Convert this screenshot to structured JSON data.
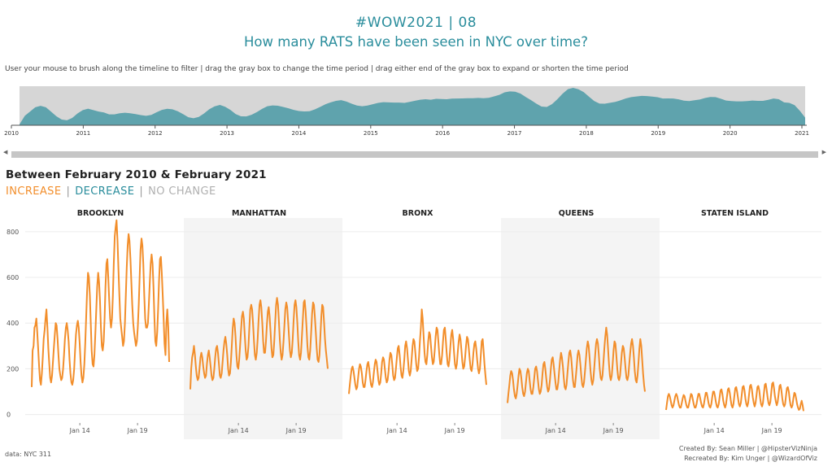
{
  "header": {
    "title": "#WOW2021  |  08",
    "subtitle": "How many RATS have been seen in NYC over time?"
  },
  "instructions": "User your mouse to brush along the timeline to filter  |  drag the gray box to change the time period  |  drag either end of the gray box to expand or shorten the time period",
  "timeline": {
    "years": [
      "2010",
      "2011",
      "2012",
      "2013",
      "2014",
      "2015",
      "2016",
      "2017",
      "2018",
      "2019",
      "2020",
      "2021"
    ],
    "series_color": "#5fa3ad",
    "background_color": "#d6d6d6"
  },
  "scrollbar": {
    "left_arrow": "◀",
    "right_arrow": "▶"
  },
  "period": "Between February 2010 & February 2021",
  "legend": {
    "increase": "INCREASE",
    "decrease": "DECREASE",
    "no_change": "NO CHANGE",
    "separator": "|",
    "colors": {
      "increase": "#f28e2b",
      "decrease": "#2a8d9c",
      "no_change": "#b0b0b0"
    }
  },
  "chart_data": {
    "type": "line",
    "yticks": [
      0,
      200,
      400,
      600,
      800
    ],
    "ylim": [
      0,
      880
    ],
    "xticks": [
      "Jan 14",
      "Jan 19"
    ],
    "line_color": "#f28e2b",
    "series": [
      {
        "name": "BROOKLYN",
        "values": [
          120,
          280,
          300,
          380,
          390,
          420,
          360,
          290,
          210,
          150,
          130,
          180,
          250,
          330,
          370,
          420,
          460,
          380,
          290,
          220,
          160,
          140,
          170,
          230,
          290,
          350,
          400,
          390,
          330,
          260,
          200,
          170,
          150,
          160,
          200,
          260,
          330,
          380,
          400,
          370,
          320,
          240,
          180,
          140,
          130,
          150,
          200,
          280,
          350,
          390,
          410,
          380,
          310,
          230,
          170,
          140,
          160,
          220,
          310,
          420,
          540,
          620,
          600,
          520,
          400,
          280,
          220,
          210,
          260,
          360,
          460,
          560,
          620,
          580,
          500,
          380,
          300,
          280,
          320,
          420,
          560,
          660,
          680,
          600,
          500,
          420,
          380,
          420,
          520,
          660,
          780,
          820,
          850,
          760,
          640,
          520,
          420,
          380,
          340,
          300,
          320,
          400,
          520,
          640,
          740,
          790,
          760,
          680,
          580,
          480,
          400,
          360,
          330,
          300,
          320,
          380,
          480,
          600,
          720,
          770,
          740,
          660,
          520,
          420,
          380,
          380,
          400,
          480,
          580,
          660,
          700,
          660,
          560,
          420,
          320,
          300,
          360,
          460,
          580,
          680,
          690,
          620,
          520,
          420,
          310,
          260,
          400,
          460,
          380,
          230
        ]
      },
      {
        "name": "MANHATTAN",
        "values": [
          110,
          200,
          250,
          270,
          300,
          260,
          210,
          170,
          150,
          160,
          200,
          250,
          270,
          250,
          210,
          180,
          160,
          170,
          220,
          260,
          280,
          250,
          210,
          170,
          150,
          160,
          200,
          250,
          290,
          300,
          270,
          220,
          170,
          160,
          180,
          230,
          280,
          320,
          340,
          310,
          260,
          200,
          170,
          180,
          230,
          300,
          380,
          420,
          400,
          340,
          260,
          210,
          200,
          240,
          300,
          370,
          430,
          450,
          420,
          350,
          280,
          240,
          250,
          300,
          380,
          460,
          480,
          460,
          400,
          320,
          260,
          240,
          270,
          330,
          410,
          480,
          500,
          470,
          400,
          320,
          270,
          270,
          320,
          390,
          450,
          470,
          430,
          360,
          290,
          250,
          260,
          320,
          400,
          480,
          510,
          480,
          410,
          330,
          270,
          240,
          260,
          320,
          390,
          460,
          490,
          470,
          410,
          340,
          280,
          250,
          270,
          330,
          410,
          480,
          500,
          470,
          400,
          320,
          260,
          240,
          270,
          340,
          420,
          490,
          500,
          450,
          380,
          300,
          250,
          240,
          280,
          360,
          440,
          490,
          480,
          430,
          360,
          290,
          240,
          230,
          260,
          340,
          430,
          480,
          470,
          400,
          330,
          280,
          240,
          200
        ]
      },
      {
        "name": "BRONX",
        "values": [
          90,
          130,
          170,
          200,
          210,
          190,
          160,
          130,
          110,
          120,
          160,
          200,
          220,
          210,
          180,
          140,
          120,
          120,
          150,
          190,
          220,
          230,
          200,
          160,
          130,
          120,
          140,
          180,
          220,
          240,
          230,
          190,
          150,
          130,
          140,
          180,
          230,
          250,
          240,
          200,
          160,
          140,
          150,
          190,
          240,
          270,
          260,
          220,
          170,
          150,
          160,
          200,
          250,
          290,
          300,
          260,
          210,
          170,
          160,
          190,
          240,
          300,
          320,
          290,
          240,
          190,
          170,
          190,
          240,
          300,
          330,
          320,
          270,
          220,
          190,
          200,
          250,
          320,
          380,
          460,
          420,
          340,
          270,
          230,
          220,
          260,
          320,
          360,
          350,
          300,
          250,
          220,
          230,
          280,
          340,
          380,
          370,
          320,
          260,
          220,
          220,
          260,
          320,
          370,
          380,
          330,
          270,
          220,
          210,
          240,
          300,
          350,
          370,
          330,
          270,
          220,
          200,
          220,
          270,
          320,
          350,
          330,
          280,
          230,
          200,
          210,
          250,
          300,
          340,
          330,
          290,
          240,
          200,
          190,
          220,
          270,
          310,
          320,
          290,
          240,
          200,
          180,
          200,
          260,
          320,
          330,
          280,
          220,
          170,
          130
        ]
      },
      {
        "name": "QUEENS",
        "values": [
          50,
          90,
          130,
          170,
          190,
          180,
          150,
          110,
          80,
          70,
          90,
          130,
          170,
          200,
          190,
          160,
          120,
          90,
          80,
          100,
          140,
          180,
          200,
          190,
          150,
          110,
          90,
          90,
          120,
          160,
          200,
          210,
          190,
          150,
          110,
          90,
          100,
          130,
          180,
          220,
          230,
          200,
          160,
          120,
          100,
          110,
          150,
          200,
          240,
          250,
          220,
          180,
          140,
          110,
          110,
          140,
          190,
          240,
          270,
          250,
          210,
          160,
          120,
          110,
          130,
          180,
          230,
          270,
          280,
          250,
          200,
          150,
          120,
          120,
          160,
          210,
          260,
          280,
          260,
          220,
          170,
          130,
          120,
          140,
          190,
          240,
          290,
          320,
          300,
          250,
          190,
          150,
          130,
          150,
          200,
          260,
          310,
          330,
          310,
          260,
          200,
          160,
          150,
          170,
          230,
          290,
          340,
          380,
          350,
          290,
          220,
          170,
          150,
          170,
          220,
          280,
          320,
          310,
          260,
          200,
          160,
          150,
          170,
          220,
          270,
          300,
          290,
          250,
          200,
          160,
          150,
          170,
          220,
          270,
          310,
          330,
          300,
          250,
          190,
          150,
          140,
          170,
          230,
          290,
          330,
          300,
          240,
          180,
          130,
          100
        ]
      },
      {
        "name": "STATEN ISLAND",
        "values": [
          20,
          50,
          80,
          90,
          80,
          60,
          40,
          30,
          40,
          60,
          80,
          90,
          80,
          60,
          40,
          30,
          30,
          50,
          70,
          85,
          80,
          60,
          40,
          30,
          30,
          50,
          70,
          90,
          85,
          65,
          45,
          30,
          30,
          45,
          70,
          90,
          90,
          70,
          50,
          35,
          30,
          45,
          70,
          95,
          95,
          75,
          50,
          35,
          30,
          45,
          75,
          100,
          100,
          80,
          55,
          35,
          30,
          45,
          75,
          105,
          110,
          90,
          60,
          40,
          30,
          45,
          80,
          110,
          115,
          95,
          65,
          40,
          30,
          45,
          80,
          115,
          120,
          100,
          70,
          45,
          35,
          50,
          85,
          120,
          125,
          105,
          70,
          45,
          35,
          50,
          90,
          125,
          130,
          110,
          75,
          50,
          35,
          50,
          85,
          120,
          125,
          105,
          70,
          45,
          35,
          50,
          90,
          130,
          135,
          110,
          75,
          50,
          40,
          55,
          95,
          135,
          140,
          115,
          80,
          55,
          40,
          55,
          90,
          125,
          130,
          105,
          70,
          45,
          35,
          45,
          80,
          115,
          120,
          100,
          65,
          40,
          30,
          40,
          70,
          95,
          90,
          70,
          45,
          30,
          20,
          25,
          45,
          60,
          40,
          15
        ]
      }
    ]
  },
  "footer": {
    "source": "data: NYC 311",
    "created_by": "Created By: Sean Miller  |  @HipsterVizNinja",
    "recreated_by": "Recreated By: Kim Unger  |  @WizardOfViz"
  }
}
